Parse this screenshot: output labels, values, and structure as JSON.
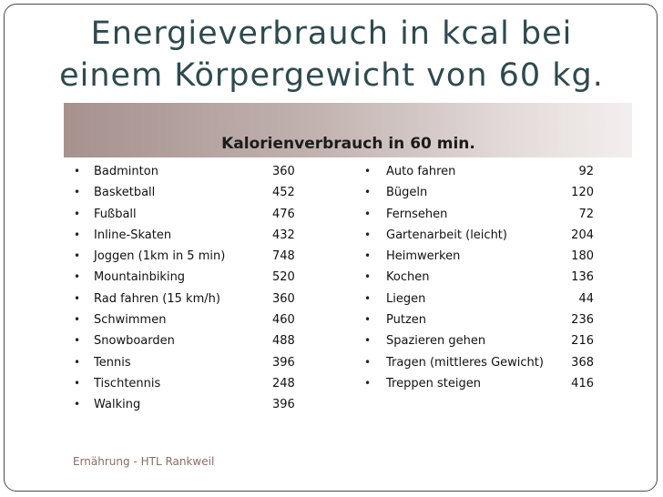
{
  "title_line1": "Energieverbrauch in kcal bei",
  "title_line2": "einem Körpergewicht von 60 kg.",
  "band_label": "Kalorienverbrauch in 60 min.",
  "left_items": [
    {
      "name": "Badminton",
      "value": "360"
    },
    {
      "name": "Basketball",
      "value": "452"
    },
    {
      "name": "Fußball",
      "value": "476"
    },
    {
      "name": "Inline-Skaten",
      "value": "432"
    },
    {
      "name": "Joggen (1km in 5 min)",
      "value": "748"
    },
    {
      "name": "Mountainbiking",
      "value": "520"
    },
    {
      "name": "Rad fahren (15 km/h)",
      "value": "360"
    },
    {
      "name": "Schwimmen",
      "value": "460"
    },
    {
      "name": "Snowboarden",
      "value": "488"
    },
    {
      "name": "Tennis",
      "value": "396"
    },
    {
      "name": "Tischtennis",
      "value": "248"
    },
    {
      "name": "Walking",
      "value": "396"
    }
  ],
  "right_items": [
    {
      "name": "Auto fahren",
      "value": "92"
    },
    {
      "name": "Bügeln",
      "value": "120"
    },
    {
      "name": "Fernsehen",
      "value": "72"
    },
    {
      "name": "Gartenarbeit (leicht)",
      "value": "204"
    },
    {
      "name": "Heimwerken",
      "value": "180"
    },
    {
      "name": "Kochen",
      "value": "136"
    },
    {
      "name": "Liegen",
      "value": "44"
    },
    {
      "name": "Putzen",
      "value": "236"
    },
    {
      "name": "Spazieren gehen",
      "value": "216"
    },
    {
      "name": "Tragen (mittleres Gewicht)",
      "value": "368"
    },
    {
      "name": "Treppen steigen",
      "value": "416"
    }
  ],
  "bullet_glyph": "•",
  "footer": "Ernährung - HTL Rankweil"
}
